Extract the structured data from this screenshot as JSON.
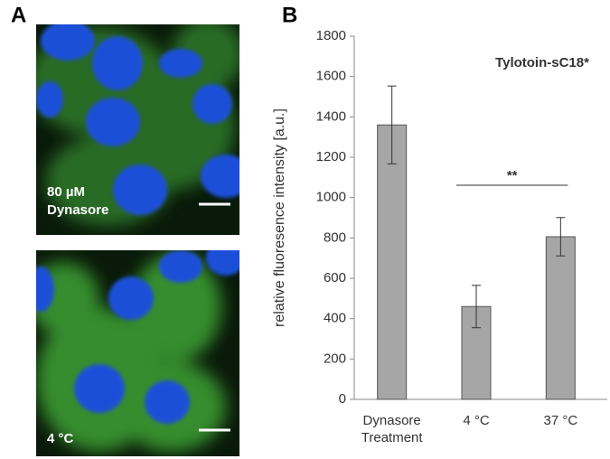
{
  "panel_labels": [
    "A",
    "B"
  ],
  "images": [
    {
      "caption": "80 µM Dynasore"
    },
    {
      "caption": "4 °C"
    }
  ],
  "chart_data": {
    "type": "bar",
    "categories": [
      "Dynasore Treatment",
      "4 °C",
      "37 °C"
    ],
    "values": [
      1360,
      460,
      806
    ],
    "errors": [
      193,
      105,
      95
    ],
    "color": "#a6a6a6",
    "ylim": [
      0,
      1800
    ],
    "yticks": [
      0,
      200,
      400,
      600,
      800,
      1000,
      1200,
      1400,
      1600,
      1800
    ],
    "ylabel": "relative fluoresence intensity [a.u.]",
    "annotation": "Tylotoin-sC18*",
    "significance": {
      "label": "**",
      "between": [
        1,
        2
      ]
    },
    "grid": false
  }
}
